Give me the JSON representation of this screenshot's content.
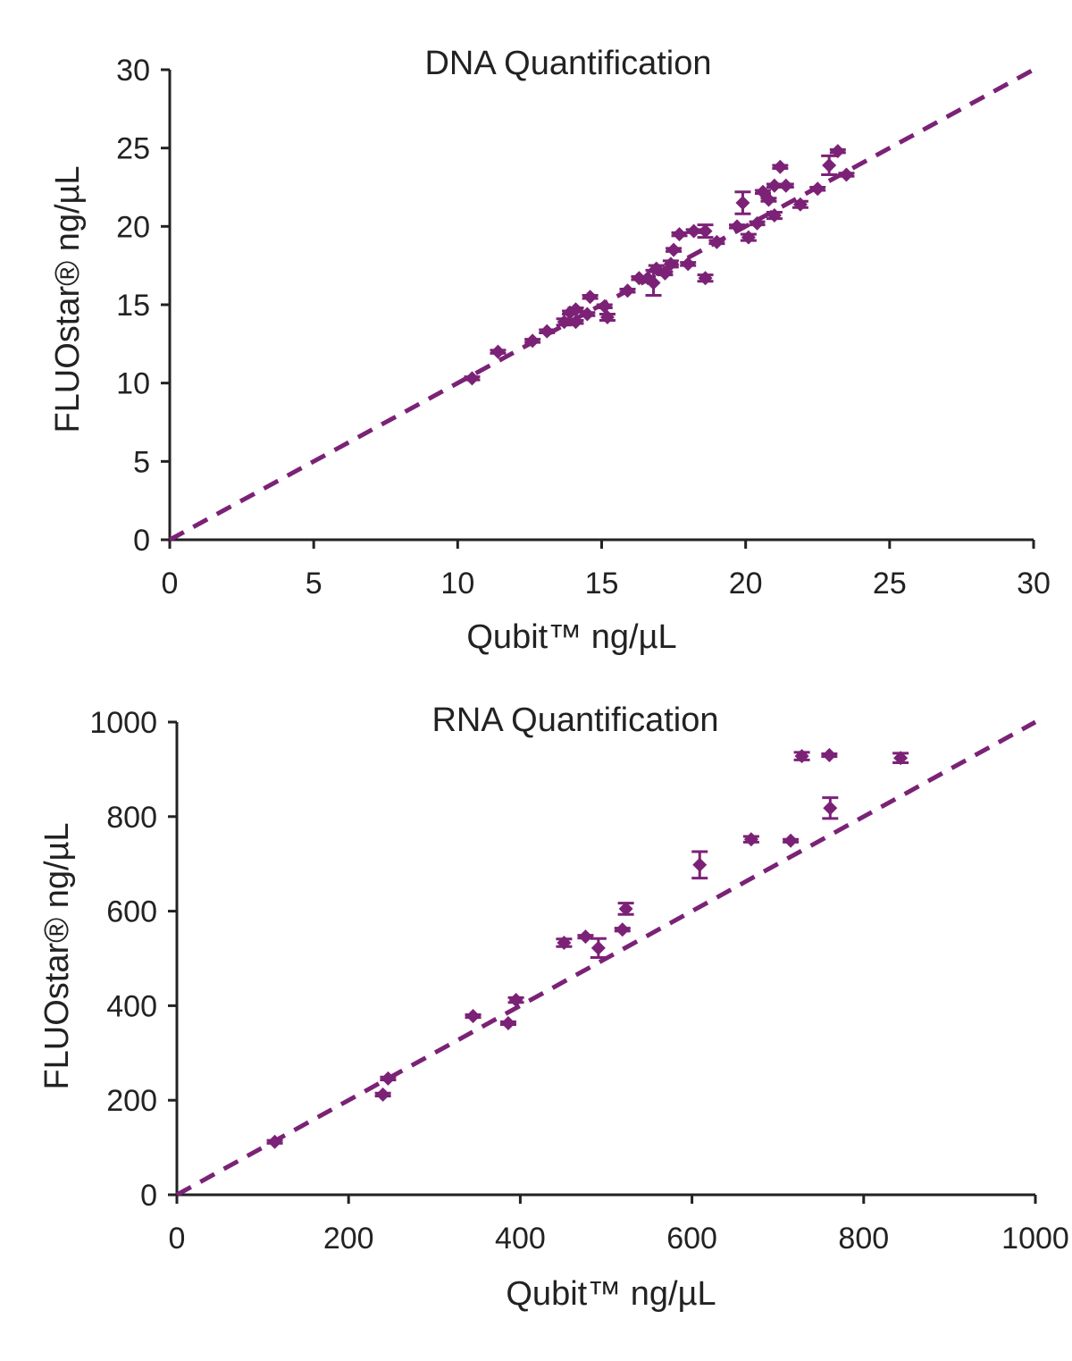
{
  "colors": {
    "marker": "#7b2277",
    "axis": "#222222"
  },
  "chart_data": [
    {
      "type": "scatter",
      "title": "DNA Quantification",
      "xlabel": "Qubit™ ng/µL",
      "ylabel": "FLUOstar® ng/µL",
      "xlim": [
        0,
        30
      ],
      "ylim": [
        0,
        30
      ],
      "xticks": [
        "0",
        "5",
        "10",
        "15",
        "20",
        "25",
        "30"
      ],
      "yticks": [
        "0",
        "5",
        "10",
        "15",
        "20",
        "25",
        "30"
      ],
      "grid": false,
      "reference_line": {
        "style": "dashed",
        "from": [
          0,
          0
        ],
        "to": [
          30,
          30
        ]
      },
      "points": [
        {
          "x": 10.5,
          "y": 10.3,
          "err": 0.1
        },
        {
          "x": 11.4,
          "y": 12.0,
          "err": 0.1
        },
        {
          "x": 12.6,
          "y": 12.7,
          "err": 0.1
        },
        {
          "x": 13.1,
          "y": 13.3,
          "err": 0.1
        },
        {
          "x": 13.7,
          "y": 13.9,
          "err": 0.2
        },
        {
          "x": 13.9,
          "y": 14.5,
          "err": 0.1
        },
        {
          "x": 14.1,
          "y": 14.7,
          "err": 0.1
        },
        {
          "x": 14.1,
          "y": 13.9,
          "err": 0.1
        },
        {
          "x": 14.5,
          "y": 14.4,
          "err": 0.1
        },
        {
          "x": 14.6,
          "y": 15.5,
          "err": 0.1
        },
        {
          "x": 15.1,
          "y": 14.9,
          "err": 0.1
        },
        {
          "x": 15.2,
          "y": 14.2,
          "err": 0.2
        },
        {
          "x": 15.9,
          "y": 15.9,
          "err": 0.1
        },
        {
          "x": 16.3,
          "y": 16.7,
          "err": 0.1
        },
        {
          "x": 16.6,
          "y": 16.7,
          "err": 0.1
        },
        {
          "x": 16.8,
          "y": 16.4,
          "err": 0.8
        },
        {
          "x": 16.9,
          "y": 17.3,
          "err": 0.2
        },
        {
          "x": 17.2,
          "y": 17.0,
          "err": 0.1
        },
        {
          "x": 17.4,
          "y": 17.6,
          "err": 0.2
        },
        {
          "x": 17.5,
          "y": 18.5,
          "err": 0.1
        },
        {
          "x": 17.7,
          "y": 19.5,
          "err": 0.1
        },
        {
          "x": 18.0,
          "y": 17.6,
          "err": 0.1
        },
        {
          "x": 18.2,
          "y": 19.7,
          "err": 0.1
        },
        {
          "x": 18.6,
          "y": 19.7,
          "err": 0.4
        },
        {
          "x": 18.6,
          "y": 16.7,
          "err": 0.2
        },
        {
          "x": 19.0,
          "y": 19.0,
          "err": 0.1
        },
        {
          "x": 19.7,
          "y": 20.0,
          "err": 0.1
        },
        {
          "x": 19.9,
          "y": 21.5,
          "err": 0.7
        },
        {
          "x": 20.1,
          "y": 19.3,
          "err": 0.2
        },
        {
          "x": 20.4,
          "y": 20.2,
          "err": 0.1
        },
        {
          "x": 20.6,
          "y": 22.2,
          "err": 0.1
        },
        {
          "x": 20.8,
          "y": 21.7,
          "err": 0.1
        },
        {
          "x": 21.0,
          "y": 20.7,
          "err": 0.2
        },
        {
          "x": 21.0,
          "y": 22.6,
          "err": 0.1
        },
        {
          "x": 21.2,
          "y": 23.8,
          "err": 0.1
        },
        {
          "x": 21.4,
          "y": 22.6,
          "err": 0.1
        },
        {
          "x": 21.9,
          "y": 21.4,
          "err": 0.2
        },
        {
          "x": 22.5,
          "y": 22.4,
          "err": 0.1
        },
        {
          "x": 22.9,
          "y": 23.9,
          "err": 0.6
        },
        {
          "x": 23.2,
          "y": 24.8,
          "err": 0.1
        },
        {
          "x": 23.5,
          "y": 23.3,
          "err": 0.1
        }
      ]
    },
    {
      "type": "scatter",
      "title": "RNA Quantification",
      "xlabel": "Qubit™ ng/µL",
      "ylabel": "FLUOstar® ng/µL",
      "xlim": [
        0,
        1000
      ],
      "ylim": [
        0,
        1000
      ],
      "xticks": [
        "0",
        "200",
        "400",
        "600",
        "800",
        "1000"
      ],
      "yticks": [
        "0",
        "200",
        "400",
        "600",
        "800",
        "1000"
      ],
      "grid": false,
      "reference_line": {
        "style": "dashed",
        "from": [
          0,
          0
        ],
        "to": [
          1000,
          1000
        ]
      },
      "points": [
        {
          "x": 114,
          "y": 112,
          "err": 3
        },
        {
          "x": 240,
          "y": 212,
          "err": 3
        },
        {
          "x": 246,
          "y": 246,
          "err": 3
        },
        {
          "x": 345,
          "y": 378,
          "err": 3
        },
        {
          "x": 386,
          "y": 363,
          "err": 3
        },
        {
          "x": 395,
          "y": 412,
          "err": 5
        },
        {
          "x": 451,
          "y": 533,
          "err": 8
        },
        {
          "x": 476,
          "y": 546,
          "err": 3
        },
        {
          "x": 491,
          "y": 522,
          "err": 20
        },
        {
          "x": 519,
          "y": 561,
          "err": 3
        },
        {
          "x": 523,
          "y": 605,
          "err": 12
        },
        {
          "x": 609,
          "y": 698,
          "err": 28
        },
        {
          "x": 669,
          "y": 752,
          "err": 6
        },
        {
          "x": 715,
          "y": 749,
          "err": 3
        },
        {
          "x": 728,
          "y": 928,
          "err": 8
        },
        {
          "x": 760,
          "y": 930,
          "err": 3
        },
        {
          "x": 761,
          "y": 818,
          "err": 22
        },
        {
          "x": 843,
          "y": 924,
          "err": 10
        }
      ]
    }
  ]
}
